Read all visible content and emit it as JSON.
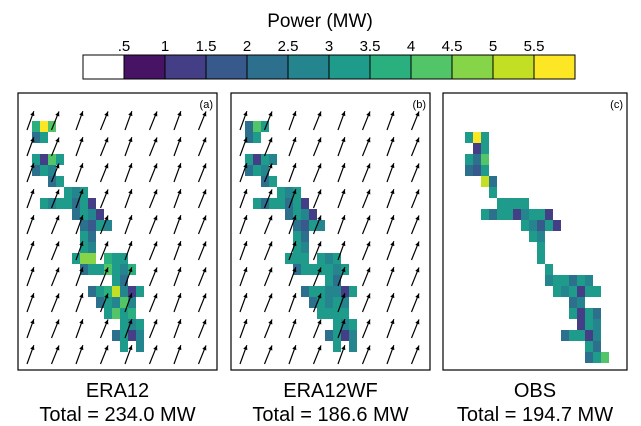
{
  "chart_data": {
    "type": "heatmap",
    "colorbar": {
      "title": "Power (MW)",
      "tick_labels": [
        ".5",
        "1",
        "1.5",
        "2",
        "2.5",
        "3",
        "3.5",
        "4",
        "4.5",
        "5",
        "5.5"
      ],
      "bins": [
        0,
        0.5,
        1.0,
        1.5,
        2.0,
        2.5,
        3.0,
        3.5,
        4.0,
        4.5,
        5.0,
        5.5
      ],
      "colors": [
        "#ffffff",
        "#471365",
        "#433e85",
        "#38598c",
        "#2d708e",
        "#25858e",
        "#1e9b8a",
        "#2ab07f",
        "#52c569",
        "#86d549",
        "#c2df23",
        "#fde725"
      ]
    },
    "panels": [
      {
        "tag": "(a)",
        "name": "ERA12",
        "total": "Total = 234.0 MW",
        "wind_arrows": true,
        "cells": [
          [
            1,
            2,
            3.5
          ],
          [
            2,
            2,
            5.5
          ],
          [
            3,
            2,
            4
          ],
          [
            1,
            3,
            2
          ],
          [
            2,
            3,
            3
          ],
          [
            1,
            5,
            3
          ],
          [
            2,
            5,
            1
          ],
          [
            3,
            5,
            4
          ],
          [
            4,
            5,
            3
          ],
          [
            1,
            6,
            2
          ],
          [
            2,
            6,
            3
          ],
          [
            3,
            6,
            2.5
          ],
          [
            3,
            7,
            2
          ],
          [
            4,
            7,
            3
          ],
          [
            5,
            8,
            3
          ],
          [
            6,
            8,
            2.5
          ],
          [
            7,
            8,
            3
          ],
          [
            2,
            9,
            3
          ],
          [
            3,
            9,
            2.5
          ],
          [
            4,
            9,
            3
          ],
          [
            5,
            9,
            3
          ],
          [
            6,
            9,
            2
          ],
          [
            7,
            9,
            3
          ],
          [
            8,
            9,
            1
          ],
          [
            6,
            10,
            2
          ],
          [
            7,
            10,
            3
          ],
          [
            8,
            10,
            2.5
          ],
          [
            9,
            10,
            1
          ],
          [
            7,
            11,
            2
          ],
          [
            8,
            11,
            1.5
          ],
          [
            9,
            11,
            3
          ],
          [
            10,
            11,
            2.5
          ],
          [
            7,
            12,
            3
          ],
          [
            8,
            12,
            2
          ],
          [
            7,
            13,
            3
          ],
          [
            8,
            13,
            2.5
          ],
          [
            6,
            14,
            3
          ],
          [
            7,
            14,
            4.5
          ],
          [
            8,
            14,
            4.5
          ],
          [
            10,
            14,
            3.5
          ],
          [
            11,
            14,
            3
          ],
          [
            12,
            14,
            3
          ],
          [
            7,
            15,
            2
          ],
          [
            8,
            15,
            3
          ],
          [
            9,
            15,
            3
          ],
          [
            10,
            15,
            4
          ],
          [
            11,
            15,
            3
          ],
          [
            12,
            15,
            2.5
          ],
          [
            13,
            15,
            3.5
          ],
          [
            11,
            16,
            3
          ],
          [
            12,
            16,
            2
          ],
          [
            8,
            17,
            2
          ],
          [
            9,
            17,
            3
          ],
          [
            10,
            17,
            3.5
          ],
          [
            11,
            17,
            5
          ],
          [
            12,
            17,
            2.5
          ],
          [
            13,
            17,
            1
          ],
          [
            14,
            17,
            3
          ],
          [
            9,
            18,
            2
          ],
          [
            10,
            18,
            3
          ],
          [
            11,
            18,
            2.5
          ],
          [
            12,
            18,
            4
          ],
          [
            13,
            18,
            2.5
          ],
          [
            10,
            19,
            3
          ],
          [
            11,
            19,
            4
          ],
          [
            12,
            19,
            3
          ],
          [
            13,
            19,
            3.5
          ],
          [
            12,
            20,
            3
          ],
          [
            13,
            20,
            2.5
          ],
          [
            14,
            20,
            3
          ],
          [
            11,
            21,
            2
          ],
          [
            12,
            21,
            3
          ],
          [
            13,
            21,
            1
          ],
          [
            14,
            21,
            2.5
          ],
          [
            12,
            22,
            3
          ],
          [
            14,
            22,
            2.5
          ]
        ]
      },
      {
        "tag": "(b)",
        "name": "ERA12WF",
        "total": "Total = 186.6 MW",
        "wind_arrows": true,
        "cells": [
          [
            1,
            2,
            2
          ],
          [
            2,
            2,
            4
          ],
          [
            3,
            2,
            3
          ],
          [
            1,
            3,
            2
          ],
          [
            2,
            3,
            3
          ],
          [
            1,
            5,
            3
          ],
          [
            2,
            5,
            1
          ],
          [
            3,
            5,
            3
          ],
          [
            4,
            5,
            2.5
          ],
          [
            1,
            6,
            2
          ],
          [
            2,
            6,
            3
          ],
          [
            3,
            6,
            2.5
          ],
          [
            3,
            7,
            2
          ],
          [
            4,
            7,
            3
          ],
          [
            5,
            8,
            3
          ],
          [
            6,
            8,
            2.5
          ],
          [
            7,
            8,
            3
          ],
          [
            2,
            9,
            3
          ],
          [
            3,
            9,
            2
          ],
          [
            4,
            9,
            3
          ],
          [
            5,
            9,
            3
          ],
          [
            6,
            9,
            2
          ],
          [
            7,
            9,
            3
          ],
          [
            8,
            9,
            1
          ],
          [
            6,
            10,
            2
          ],
          [
            7,
            10,
            3
          ],
          [
            8,
            10,
            2.5
          ],
          [
            9,
            10,
            1
          ],
          [
            7,
            11,
            2
          ],
          [
            8,
            11,
            1.5
          ],
          [
            9,
            11,
            3
          ],
          [
            10,
            11,
            2.5
          ],
          [
            7,
            12,
            3
          ],
          [
            8,
            12,
            2
          ],
          [
            7,
            13,
            3
          ],
          [
            8,
            13,
            2.5
          ],
          [
            6,
            14,
            3
          ],
          [
            7,
            14,
            3
          ],
          [
            8,
            14,
            3
          ],
          [
            10,
            14,
            3
          ],
          [
            11,
            14,
            2.5
          ],
          [
            12,
            14,
            3
          ],
          [
            7,
            15,
            2
          ],
          [
            8,
            15,
            3
          ],
          [
            9,
            15,
            3
          ],
          [
            10,
            15,
            3
          ],
          [
            11,
            15,
            3
          ],
          [
            12,
            15,
            2.5
          ],
          [
            13,
            15,
            3
          ],
          [
            11,
            16,
            3
          ],
          [
            12,
            16,
            2
          ],
          [
            8,
            17,
            2
          ],
          [
            9,
            17,
            3
          ],
          [
            10,
            17,
            3
          ],
          [
            11,
            17,
            2.5
          ],
          [
            12,
            17,
            2.5
          ],
          [
            13,
            17,
            1
          ],
          [
            14,
            17,
            3
          ],
          [
            9,
            18,
            2
          ],
          [
            10,
            18,
            3
          ],
          [
            11,
            18,
            2.5
          ],
          [
            12,
            18,
            3
          ],
          [
            13,
            18,
            2.5
          ],
          [
            10,
            19,
            3
          ],
          [
            11,
            19,
            3
          ],
          [
            12,
            19,
            3
          ],
          [
            13,
            19,
            3
          ],
          [
            12,
            20,
            3
          ],
          [
            13,
            20,
            2.5
          ],
          [
            14,
            20,
            3
          ],
          [
            11,
            21,
            2
          ],
          [
            12,
            21,
            3
          ],
          [
            13,
            21,
            1
          ],
          [
            14,
            21,
            2.5
          ],
          [
            12,
            22,
            3
          ],
          [
            14,
            22,
            2.5
          ]
        ]
      },
      {
        "tag": "(c)",
        "name": "OBS",
        "total": "Total = 194.7 MW",
        "wind_arrows": false,
        "cells": [
          [
            2,
            3,
            3
          ],
          [
            3,
            3,
            5.5
          ],
          [
            4,
            3,
            3
          ],
          [
            3,
            4,
            1
          ],
          [
            4,
            4,
            3
          ],
          [
            2,
            5,
            3
          ],
          [
            3,
            5,
            2
          ],
          [
            4,
            5,
            4
          ],
          [
            2,
            6,
            2
          ],
          [
            3,
            6,
            1.5
          ],
          [
            4,
            6,
            3
          ],
          [
            4,
            7,
            5
          ],
          [
            5,
            7,
            2
          ],
          [
            5,
            8,
            3
          ],
          [
            6,
            9,
            3
          ],
          [
            7,
            9,
            3
          ],
          [
            8,
            9,
            3
          ],
          [
            9,
            9,
            3
          ],
          [
            4,
            10,
            3
          ],
          [
            5,
            10,
            2
          ],
          [
            6,
            10,
            3
          ],
          [
            7,
            10,
            3
          ],
          [
            8,
            10,
            1
          ],
          [
            9,
            10,
            2.5
          ],
          [
            10,
            10,
            3
          ],
          [
            11,
            10,
            3
          ],
          [
            12,
            10,
            1
          ],
          [
            9,
            11,
            3
          ],
          [
            10,
            11,
            2.5
          ],
          [
            11,
            11,
            1.5
          ],
          [
            12,
            11,
            3
          ],
          [
            13,
            11,
            1
          ],
          [
            10,
            12,
            3
          ],
          [
            11,
            12,
            2.5
          ],
          [
            11,
            13,
            3
          ],
          [
            11,
            14,
            3
          ],
          [
            12,
            15,
            3
          ],
          [
            12,
            16,
            2.5
          ],
          [
            13,
            16,
            3
          ],
          [
            14,
            16,
            3
          ],
          [
            15,
            16,
            2
          ],
          [
            16,
            16,
            3
          ],
          [
            17,
            16,
            2.5
          ],
          [
            13,
            17,
            3
          ],
          [
            14,
            17,
            2.5
          ],
          [
            15,
            17,
            3
          ],
          [
            16,
            17,
            1
          ],
          [
            17,
            17,
            3
          ],
          [
            18,
            17,
            3
          ],
          [
            15,
            18,
            2
          ],
          [
            16,
            18,
            2.5
          ],
          [
            15,
            19,
            3
          ],
          [
            16,
            19,
            1
          ],
          [
            17,
            19,
            3
          ],
          [
            18,
            19,
            2
          ],
          [
            16,
            20,
            1
          ],
          [
            17,
            20,
            3
          ],
          [
            18,
            20,
            2.5
          ],
          [
            14,
            21,
            2
          ],
          [
            15,
            21,
            3
          ],
          [
            16,
            21,
            3
          ],
          [
            17,
            21,
            1
          ],
          [
            18,
            21,
            2.5
          ],
          [
            17,
            22,
            3
          ],
          [
            18,
            22,
            2
          ],
          [
            17,
            23,
            2
          ],
          [
            18,
            23,
            3
          ],
          [
            19,
            23,
            4
          ]
        ]
      }
    ]
  }
}
